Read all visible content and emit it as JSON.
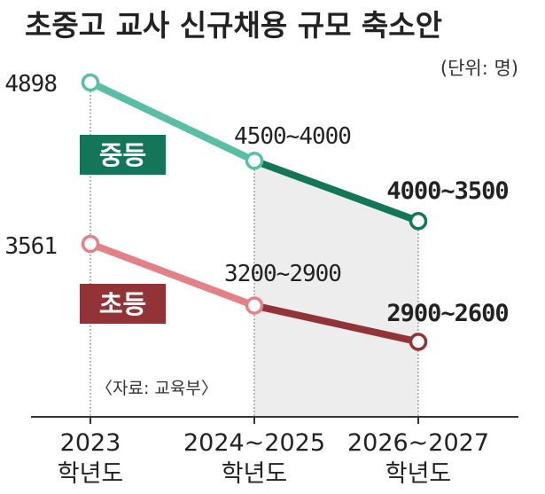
{
  "chart_data": {
    "type": "line",
    "title": "초중고 교사 신규채용 규모 축소안",
    "unit_label": "(단위: 명)",
    "source": "〈자료: 교육부〉",
    "categories": [
      {
        "year": "2023",
        "label": "학년도"
      },
      {
        "year": "2024~2025",
        "label": "학년도"
      },
      {
        "year": "2026~2027",
        "label": "학년도"
      }
    ],
    "series": [
      {
        "name": "중등",
        "color_light": "#58bfa6",
        "color_dark": "#137659",
        "values": [
          4898,
          4250,
          3750
        ],
        "range_low": [
          4898,
          4000,
          3500
        ],
        "range_high": [
          4898,
          4500,
          4000
        ],
        "value_labels": [
          "4898",
          "4500~4000",
          "4000~3500"
        ]
      },
      {
        "name": "초등",
        "color_light": "#e48186",
        "color_dark": "#923437",
        "values": [
          3561,
          3050,
          2750
        ],
        "range_low": [
          3561,
          2900,
          2600
        ],
        "range_high": [
          3561,
          3200,
          2900
        ],
        "value_labels": [
          "3561",
          "3200~2900",
          "2900~2600"
        ]
      }
    ],
    "shaded_region": {
      "from_index": 1,
      "to_index": 2,
      "color": "#ededed"
    },
    "grid": false,
    "legend": "inline"
  }
}
